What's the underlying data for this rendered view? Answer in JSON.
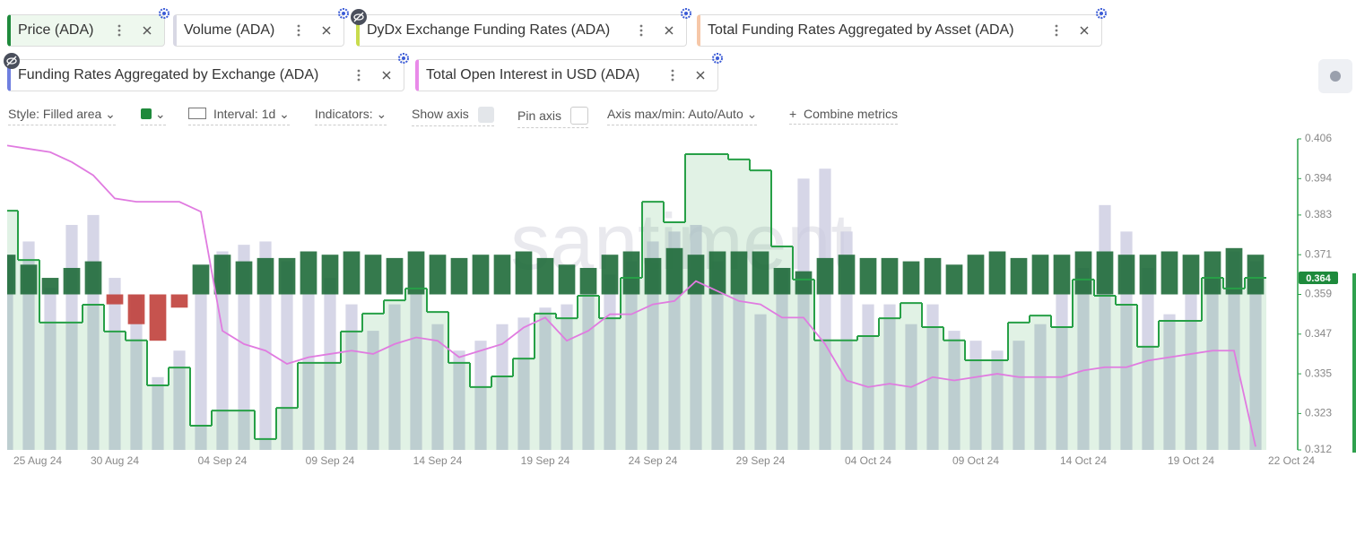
{
  "tabs": [
    "Price (ADA)",
    "Volume (ADA)",
    "DyDx Exchange Funding Rates (ADA)",
    "Total Funding Rates Aggregated by Asset (ADA)",
    "Funding Rates Aggregated by Exchange (ADA)",
    "Total Open Interest in USD (ADA)"
  ],
  "toolbar": {
    "style": "Style: Filled area",
    "interval": "Interval: 1d",
    "indicators": "Indicators:",
    "show_axis": "Show axis",
    "pin_axis": "Pin axis",
    "axis_max_min": "Axis max/min: Auto/Auto",
    "combine": "Combine metrics"
  },
  "chart_data": {
    "type": "combo",
    "watermark": "santiment",
    "grid": false,
    "categories": [
      "25 Aug 24",
      null,
      null,
      null,
      null,
      "30 Aug 24",
      null,
      null,
      null,
      null,
      "04 Sep 24",
      null,
      null,
      null,
      null,
      "09 Sep 24",
      null,
      null,
      null,
      null,
      "14 Sep 24",
      null,
      null,
      null,
      null,
      "19 Sep 24",
      null,
      null,
      null,
      null,
      "24 Sep 24",
      null,
      null,
      null,
      null,
      "29 Sep 24",
      null,
      null,
      null,
      null,
      "04 Oct 24",
      null,
      null,
      null,
      null,
      "09 Oct 24",
      null,
      null,
      null,
      null,
      "14 Oct 24",
      null,
      null,
      null,
      null,
      "19 Oct 24",
      null,
      null,
      "22 Oct 24"
    ],
    "ylim": [
      0.312,
      0.406
    ],
    "yticks": [
      0.406,
      0.394,
      0.383,
      0.371,
      0.359,
      0.347,
      0.335,
      0.323,
      0.312
    ],
    "series": [
      {
        "name": "Price (ADA)",
        "type": "area",
        "color": "#27a047",
        "values": [
          0.3843,
          0.3694,
          0.3505,
          0.3505,
          0.3559,
          0.3478,
          0.3451,
          0.3315,
          0.3369,
          0.3193,
          0.3239,
          0.3239,
          0.3153,
          0.3247,
          0.3383,
          0.3383,
          0.3478,
          0.3532,
          0.3572,
          0.3608,
          0.3537,
          0.3383,
          0.331,
          0.3342,
          0.3396,
          0.3532,
          0.3518,
          0.3586,
          0.3518,
          0.364,
          0.387,
          0.3808,
          0.4014,
          0.4014,
          0.3998,
          0.3965,
          0.3735,
          0.3635,
          0.3451,
          0.3451,
          0.3464,
          0.3518,
          0.3564,
          0.3491,
          0.3451,
          0.3391,
          0.3391,
          0.3505,
          0.3526,
          0.3491,
          0.3635,
          0.3586,
          0.3559,
          0.3432,
          0.351,
          0.351,
          0.364,
          0.3608,
          0.364
        ]
      },
      {
        "name": "Volume (ADA)",
        "type": "bar",
        "color": "#c8c8df",
        "values": [
          0.371,
          0.375,
          0.361,
          0.38,
          0.383,
          0.364,
          0.359,
          0.334,
          0.342,
          0.359,
          0.372,
          0.374,
          0.375,
          0.369,
          0.359,
          0.364,
          0.356,
          0.348,
          0.356,
          0.359,
          0.35,
          0.342,
          0.345,
          0.35,
          0.352,
          0.355,
          0.356,
          0.359,
          0.365,
          0.369,
          0.375,
          0.378,
          0.38,
          0.369,
          0.359,
          0.353,
          0.367,
          0.394,
          0.397,
          0.378,
          0.356,
          0.356,
          0.35,
          0.356,
          0.348,
          0.345,
          0.342,
          0.345,
          0.35,
          0.359,
          0.367,
          0.386,
          0.378,
          0.367,
          0.353,
          0.359,
          0.364,
          0.372,
          0.369
        ]
      },
      {
        "name": "Total Funding Rates Aggregated by Asset (ADA)",
        "type": "bar",
        "base": 0.359,
        "color": "#1f6b3a",
        "negative_color": "#c0403b",
        "values": [
          0.371,
          0.368,
          0.364,
          0.367,
          0.369,
          0.356,
          0.35,
          0.345,
          0.355,
          0.368,
          0.371,
          0.369,
          0.37,
          0.37,
          0.372,
          0.371,
          0.372,
          0.371,
          0.37,
          0.372,
          0.371,
          0.37,
          0.371,
          0.371,
          0.372,
          0.37,
          0.368,
          0.367,
          0.371,
          0.372,
          0.37,
          0.373,
          0.371,
          0.372,
          0.372,
          0.372,
          0.367,
          0.366,
          0.37,
          0.371,
          0.37,
          0.37,
          0.369,
          0.37,
          0.368,
          0.371,
          0.372,
          0.37,
          0.371,
          0.371,
          0.372,
          0.372,
          0.371,
          0.371,
          0.372,
          0.371,
          0.372,
          0.373,
          0.371
        ]
      },
      {
        "name": "Total Open Interest in USD (ADA)",
        "type": "line",
        "color": "#e07be0",
        "values": [
          0.404,
          0.403,
          0.402,
          0.399,
          0.395,
          0.388,
          0.387,
          0.387,
          0.387,
          0.384,
          0.348,
          0.344,
          0.342,
          0.338,
          0.34,
          0.341,
          0.342,
          0.341,
          0.344,
          0.346,
          0.345,
          0.34,
          0.342,
          0.344,
          0.349,
          0.352,
          0.345,
          0.348,
          0.353,
          0.353,
          0.356,
          0.357,
          0.363,
          0.36,
          0.357,
          0.356,
          0.352,
          0.352,
          0.344,
          0.333,
          0.331,
          0.332,
          0.331,
          0.334,
          0.333,
          0.334,
          0.335,
          0.334,
          0.334,
          0.334,
          0.336,
          0.337,
          0.337,
          0.339,
          0.34,
          0.341,
          0.342,
          0.342,
          0.313
        ]
      }
    ]
  }
}
